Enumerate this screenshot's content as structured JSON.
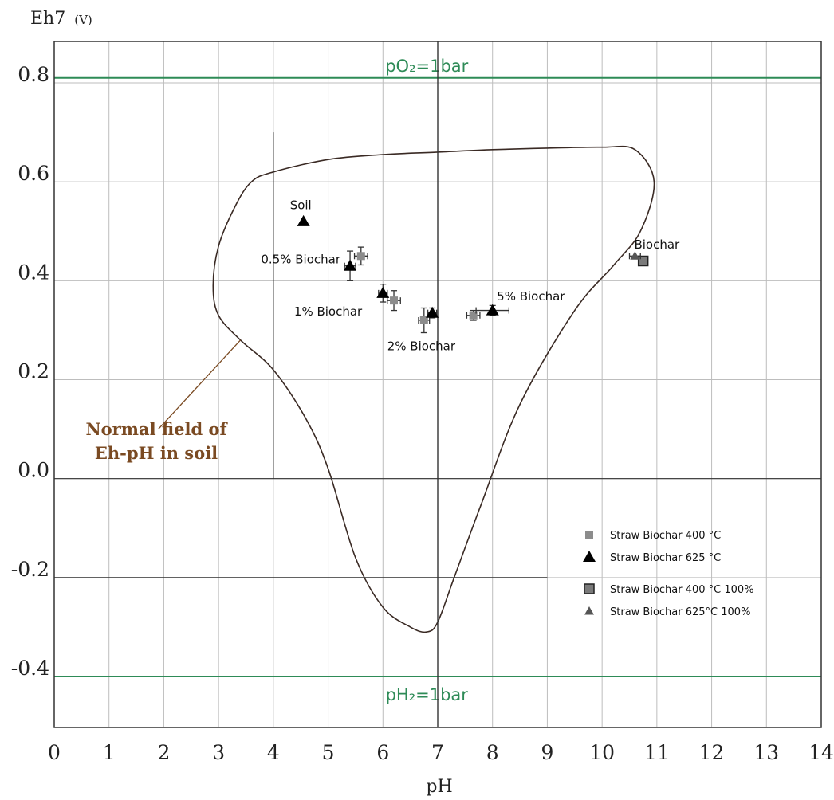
{
  "chart_data": {
    "type": "scatter",
    "title": "",
    "xlabel": "pH",
    "ylabel": "Eh7",
    "ylabel_unit": "(V)",
    "xlim": [
      0,
      14
    ],
    "ylim": [
      -0.5,
      0.88
    ],
    "grid": true,
    "x_ticks": [
      0,
      1,
      2,
      3,
      4,
      5,
      6,
      7,
      8,
      9,
      10,
      11,
      12,
      13,
      14
    ],
    "x_tick_labels": [
      "0",
      "1",
      "2",
      "3",
      "4",
      "5",
      "6",
      "7",
      "8",
      "9",
      "10",
      "11",
      "12",
      "13",
      "14"
    ],
    "y_ticks": [
      0.8,
      0.6,
      0.4,
      0.2,
      0.0,
      -0.2,
      -0.4
    ],
    "y_tick_labels": [
      "0.8",
      "0.6",
      "0.4",
      "0.2",
      "0.0",
      "-0.2",
      "-0.4"
    ],
    "reference_lines": [
      {
        "label": "pO₂=1bar",
        "y": 0.81,
        "color": "#2e8b57"
      },
      {
        "label": "pH₂=1bar",
        "y": -0.4,
        "color": "#2e8b57"
      }
    ],
    "series": [
      {
        "name": "Straw Biochar 400 °C",
        "marker": "square",
        "color": "#8c8c8c",
        "points": [
          {
            "x": 5.6,
            "y": 0.45,
            "xerr": 0.12,
            "yerr": 0.018
          },
          {
            "x": 6.2,
            "y": 0.36,
            "xerr": 0.12,
            "yerr": 0.02
          },
          {
            "x": 6.75,
            "y": 0.32,
            "xerr": 0.1,
            "yerr": 0.025
          },
          {
            "x": 7.65,
            "y": 0.33,
            "xerr": 0.12,
            "yerr": 0.01
          }
        ]
      },
      {
        "name": "Straw Biochar 625 °C",
        "marker": "triangle",
        "color": "#000000",
        "points": [
          {
            "x": 4.55,
            "y": 0.52,
            "xerr": 0,
            "yerr": 0
          },
          {
            "x": 5.4,
            "y": 0.43,
            "xerr": 0.1,
            "yerr": 0.03
          },
          {
            "x": 6.0,
            "y": 0.375,
            "xerr": 0.08,
            "yerr": 0.018
          },
          {
            "x": 6.9,
            "y": 0.335,
            "xerr": 0.08,
            "yerr": 0.01
          },
          {
            "x": 8.0,
            "y": 0.34,
            "xerr": 0.3,
            "yerr": 0.01
          }
        ]
      },
      {
        "name": "Straw Biochar 400 °C 100%",
        "marker": "square-outline",
        "color": "#7a7a7a",
        "points": [
          {
            "x": 10.75,
            "y": 0.44,
            "xerr": 0,
            "yerr": 0
          }
        ]
      },
      {
        "name": "Straw Biochar 625°C 100%",
        "marker": "triangle-small",
        "color": "#555555",
        "points": [
          {
            "x": 10.6,
            "y": 0.45,
            "xerr": 0.1,
            "yerr": 0
          }
        ]
      }
    ],
    "point_labels": [
      {
        "text": "Soil",
        "x": 4.5,
        "y": 0.545
      },
      {
        "text": "0.5% Biochar",
        "x": 4.5,
        "y": 0.435
      },
      {
        "text": "1% Biochar",
        "x": 5.0,
        "y": 0.33
      },
      {
        "text": "2% Biochar",
        "x": 6.7,
        "y": 0.26
      },
      {
        "text": "5% Biochar",
        "x": 8.7,
        "y": 0.36
      },
      {
        "text": "Biochar",
        "x": 11.0,
        "y": 0.465
      }
    ],
    "region": {
      "label_lines": [
        "Normal field of",
        "Eh-pH in soil"
      ],
      "label_color": "#7a4a22",
      "outline": [
        [
          4.0,
          0.62
        ],
        [
          5.0,
          0.645
        ],
        [
          6.0,
          0.655
        ],
        [
          7.0,
          0.66
        ],
        [
          8.0,
          0.665
        ],
        [
          9.0,
          0.668
        ],
        [
          10.0,
          0.67
        ],
        [
          10.6,
          0.665
        ],
        [
          10.95,
          0.6
        ],
        [
          10.7,
          0.5
        ],
        [
          10.2,
          0.43
        ],
        [
          9.5,
          0.34
        ],
        [
          8.5,
          0.15
        ],
        [
          7.8,
          -0.05
        ],
        [
          7.3,
          -0.2
        ],
        [
          7.0,
          -0.29
        ],
        [
          6.8,
          -0.31
        ],
        [
          6.5,
          -0.3
        ],
        [
          6.0,
          -0.26
        ],
        [
          5.5,
          -0.16
        ],
        [
          5.0,
          0.02
        ],
        [
          4.6,
          0.12
        ],
        [
          4.0,
          0.22
        ],
        [
          3.4,
          0.28
        ],
        [
          3.0,
          0.33
        ],
        [
          2.9,
          0.39
        ],
        [
          3.0,
          0.47
        ],
        [
          3.3,
          0.55
        ],
        [
          3.6,
          0.6
        ]
      ],
      "pointer_from": [
        1.9,
        0.1
      ],
      "pointer_to": [
        3.4,
        0.28
      ]
    },
    "legend": {
      "placement": "bottom-right",
      "entries": [
        "Straw Biochar 400 °C",
        "Straw Biochar 625 °C",
        "Straw Biochar 400 °C 100%",
        "Straw Biochar 625°C 100%"
      ]
    }
  }
}
